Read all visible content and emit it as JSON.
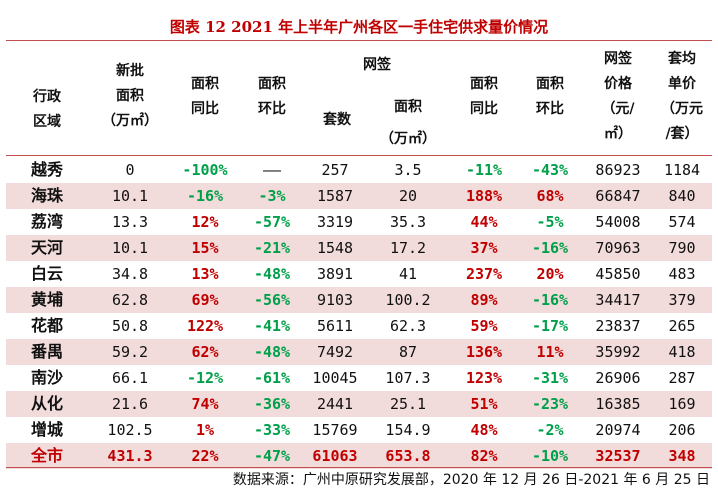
{
  "title": "图表 12 2021 年上半年广州各区一手住宅供求量价情况",
  "headers": {
    "region": [
      "行政",
      "区域"
    ],
    "new_area": [
      "新批",
      "面积",
      "（万㎡）"
    ],
    "new_yoy": [
      "面积",
      "同比"
    ],
    "new_mom": [
      "面积",
      "环比"
    ],
    "group": "网签",
    "sets": "套数",
    "sign_area": [
      "面积",
      "（万㎡）"
    ],
    "sign_yoy": [
      "面积",
      "同比"
    ],
    "sign_mom": [
      "面积",
      "环比"
    ],
    "price": [
      "网签",
      "价格",
      "（元/",
      "㎡）"
    ],
    "unit": [
      "套均",
      "单价",
      "（万元",
      "/套）"
    ]
  },
  "rows": [
    {
      "region": "越秀",
      "values": [
        "0",
        "-100%",
        "——",
        "257",
        "3.5",
        "-11%",
        "-43%",
        "86923",
        "1184"
      ],
      "tone": [
        "",
        "down",
        "",
        "",
        "",
        "down",
        "down",
        "",
        ""
      ]
    },
    {
      "region": "海珠",
      "values": [
        "10.1",
        "-16%",
        "-3%",
        "1587",
        "20",
        "188%",
        "68%",
        "66847",
        "840"
      ],
      "tone": [
        "",
        "down",
        "down",
        "",
        "",
        "up",
        "up",
        "",
        ""
      ]
    },
    {
      "region": "荔湾",
      "values": [
        "13.3",
        "12%",
        "-57%",
        "3319",
        "35.3",
        "44%",
        "-5%",
        "54008",
        "574"
      ],
      "tone": [
        "",
        "up",
        "down",
        "",
        "",
        "up",
        "down",
        "",
        ""
      ]
    },
    {
      "region": "天河",
      "values": [
        "10.1",
        "15%",
        "-21%",
        "1548",
        "17.2",
        "37%",
        "-16%",
        "70963",
        "790"
      ],
      "tone": [
        "",
        "up",
        "down",
        "",
        "",
        "up",
        "down",
        "",
        ""
      ]
    },
    {
      "region": "白云",
      "values": [
        "34.8",
        "13%",
        "-48%",
        "3891",
        "41",
        "237%",
        "20%",
        "45850",
        "483"
      ],
      "tone": [
        "",
        "up",
        "down",
        "",
        "",
        "up",
        "up",
        "",
        ""
      ]
    },
    {
      "region": "黄埔",
      "values": [
        "62.8",
        "69%",
        "-56%",
        "9103",
        "100.2",
        "89%",
        "-16%",
        "34417",
        "379"
      ],
      "tone": [
        "",
        "up",
        "down",
        "",
        "",
        "up",
        "down",
        "",
        ""
      ]
    },
    {
      "region": "花都",
      "values": [
        "50.8",
        "122%",
        "-41%",
        "5611",
        "62.3",
        "59%",
        "-17%",
        "23837",
        "265"
      ],
      "tone": [
        "",
        "up",
        "down",
        "",
        "",
        "up",
        "down",
        "",
        ""
      ]
    },
    {
      "region": "番禺",
      "values": [
        "59.2",
        "62%",
        "-48%",
        "7492",
        "87",
        "136%",
        "11%",
        "35992",
        "418"
      ],
      "tone": [
        "",
        "up",
        "down",
        "",
        "",
        "up",
        "up",
        "",
        ""
      ]
    },
    {
      "region": "南沙",
      "values": [
        "66.1",
        "-12%",
        "-61%",
        "10045",
        "107.3",
        "123%",
        "-31%",
        "26906",
        "287"
      ],
      "tone": [
        "",
        "down",
        "down",
        "",
        "",
        "up",
        "down",
        "",
        ""
      ]
    },
    {
      "region": "从化",
      "values": [
        "21.6",
        "74%",
        "-36%",
        "2441",
        "25.1",
        "51%",
        "-23%",
        "16385",
        "169"
      ],
      "tone": [
        "",
        "up",
        "down",
        "",
        "",
        "up",
        "down",
        "",
        ""
      ]
    },
    {
      "region": "增城",
      "values": [
        "102.5",
        "1%",
        "-33%",
        "15769",
        "154.9",
        "48%",
        "-2%",
        "20974",
        "206"
      ],
      "tone": [
        "",
        "up",
        "down",
        "",
        "",
        "up",
        "down",
        "",
        ""
      ]
    },
    {
      "region": "全市",
      "values": [
        "431.3",
        "22%",
        "-47%",
        "61063",
        "653.8",
        "82%",
        "-10%",
        "32537",
        "348"
      ],
      "tone": [
        "",
        "up",
        "down",
        "",
        "",
        "up",
        "down",
        "",
        ""
      ]
    }
  ],
  "source": "数据来源：广州中原研究发展部，2020 年 12 月 26 日-2021 年 6 月 25 日",
  "colors": {
    "red": "#c00000",
    "green": "#00a04a",
    "shade": "#f2dcdb"
  }
}
